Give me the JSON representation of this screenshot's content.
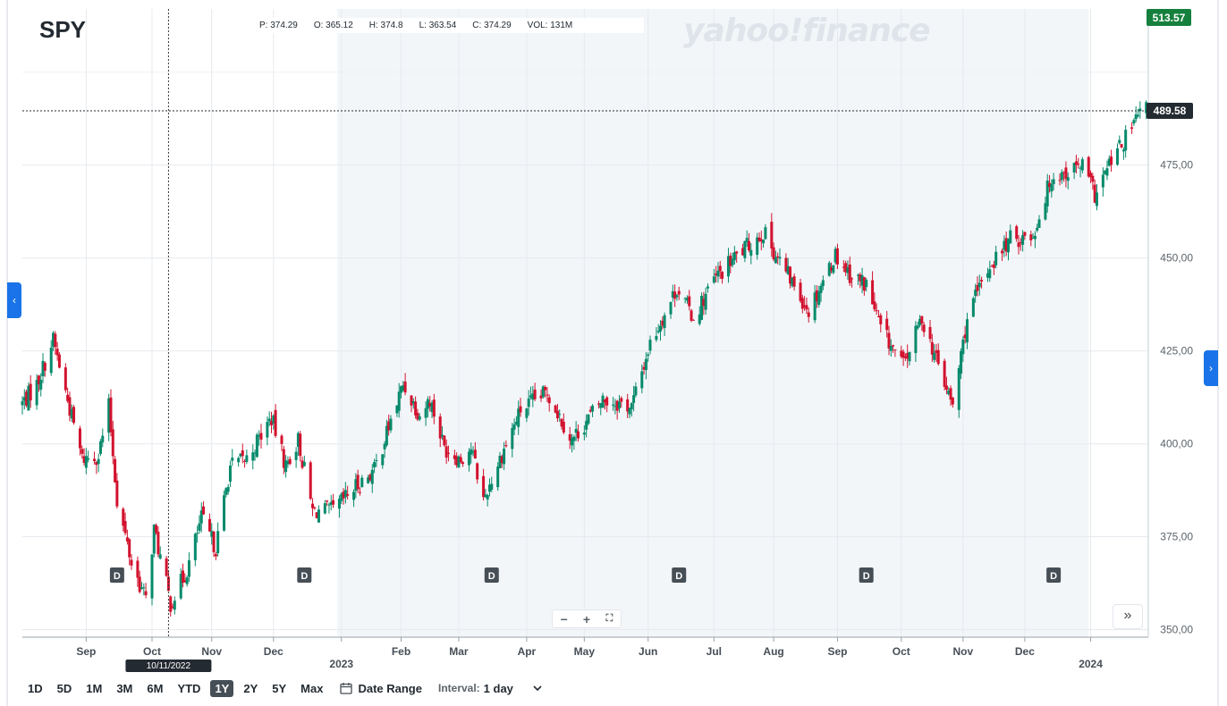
{
  "ticker": "SPY",
  "ohlc": {
    "p_label": "P:",
    "p": "374.29",
    "o_label": "O:",
    "o": "365.12",
    "h_label": "H:",
    "h": "374.8",
    "l_label": "L:",
    "l": "363.54",
    "c_label": "C:",
    "c": "374.29",
    "vol_label": "VOL:",
    "vol": "131M"
  },
  "watermark": "yahoo!finance",
  "colors": {
    "up": "#068a6b",
    "down": "#d2122e",
    "axis_text": "#5b636a",
    "shade": "#f3f6f9",
    "badge": "#464e56",
    "current_badge": "#232a31",
    "top_badge": "#15803d"
  },
  "chart_data": {
    "type": "candlestick",
    "ylim": [
      348,
      517
    ],
    "y_ticks": [
      350,
      375,
      400,
      425,
      450,
      475
    ],
    "y_tick_labels": [
      "350,00",
      "375,00",
      "400,00",
      "425,00",
      "450,00",
      "475,00"
    ],
    "x_ticks": [
      {
        "date": "2022-09-01",
        "label": "Sep"
      },
      {
        "date": "2022-10-03",
        "label": "Oct"
      },
      {
        "date": "2022-11-01",
        "label": "Nov"
      },
      {
        "date": "2022-12-01",
        "label": "Dec"
      },
      {
        "date": "2023-01-03",
        "label": "2023",
        "year": true
      },
      {
        "date": "2023-02-01",
        "label": "Feb"
      },
      {
        "date": "2023-03-01",
        "label": "Mar"
      },
      {
        "date": "2023-04-03",
        "label": "Apr"
      },
      {
        "date": "2023-05-01",
        "label": "May"
      },
      {
        "date": "2023-06-01",
        "label": "Jun"
      },
      {
        "date": "2023-07-03",
        "label": "Jul"
      },
      {
        "date": "2023-08-01",
        "label": "Aug"
      },
      {
        "date": "2023-09-01",
        "label": "Sep"
      },
      {
        "date": "2023-10-02",
        "label": "Oct"
      },
      {
        "date": "2023-11-01",
        "label": "Nov"
      },
      {
        "date": "2023-12-01",
        "label": "Dec"
      },
      {
        "date": "2024-01-02",
        "label": "2024",
        "year": true
      }
    ],
    "x_range": [
      "2022-08-01",
      "2024-01-30"
    ],
    "shaded_from": "2023-01-01",
    "shaded_to": "2024-01-01",
    "current_price": 489.58,
    "current_label": "489.58",
    "top_label": "513.57",
    "crosshair": {
      "date": "2022-10-11",
      "label": "10/11/2022"
    },
    "dividends": [
      {
        "date": "2022-09-16",
        "label": "D"
      },
      {
        "date": "2022-12-16",
        "label": "D"
      },
      {
        "date": "2023-03-17",
        "label": "D"
      },
      {
        "date": "2023-06-16",
        "label": "D"
      },
      {
        "date": "2023-09-15",
        "label": "D"
      },
      {
        "date": "2023-12-15",
        "label": "D"
      }
    ],
    "keypoints": [
      [
        "2022-08-01",
        411
      ],
      [
        "2022-08-08",
        416
      ],
      [
        "2022-08-16",
        428
      ],
      [
        "2022-08-22",
        414
      ],
      [
        "2022-08-30",
        396
      ],
      [
        "2022-09-07",
        397
      ],
      [
        "2022-09-12",
        410
      ],
      [
        "2022-09-16",
        385
      ],
      [
        "2022-09-23",
        368
      ],
      [
        "2022-09-30",
        358
      ],
      [
        "2022-10-04",
        377
      ],
      [
        "2022-10-12",
        357
      ],
      [
        "2022-10-20",
        366
      ],
      [
        "2022-10-27",
        380
      ],
      [
        "2022-11-03",
        372
      ],
      [
        "2022-11-10",
        394
      ],
      [
        "2022-11-18",
        396
      ],
      [
        "2022-11-30",
        407
      ],
      [
        "2022-12-07",
        394
      ],
      [
        "2022-12-13",
        401
      ],
      [
        "2022-12-20",
        382
      ],
      [
        "2022-12-30",
        382
      ],
      [
        "2023-01-09",
        388
      ],
      [
        "2023-01-19",
        393
      ],
      [
        "2023-02-02",
        416
      ],
      [
        "2023-02-10",
        408
      ],
      [
        "2023-02-15",
        412
      ],
      [
        "2023-02-22",
        399
      ],
      [
        "2023-03-02",
        396
      ],
      [
        "2023-03-07",
        399
      ],
      [
        "2023-03-13",
        385
      ],
      [
        "2023-03-21",
        396
      ],
      [
        "2023-03-31",
        409
      ],
      [
        "2023-04-13",
        414
      ],
      [
        "2023-04-25",
        401
      ],
      [
        "2023-05-10",
        412
      ],
      [
        "2023-05-24",
        410
      ],
      [
        "2023-06-02",
        427
      ],
      [
        "2023-06-15",
        442
      ],
      [
        "2023-06-23",
        434
      ],
      [
        "2023-07-03",
        444
      ],
      [
        "2023-07-13",
        450
      ],
      [
        "2023-07-27",
        457
      ],
      [
        "2023-08-03",
        450
      ],
      [
        "2023-08-18",
        436
      ],
      [
        "2023-08-31",
        451
      ],
      [
        "2023-09-08",
        445
      ],
      [
        "2023-09-15",
        443
      ],
      [
        "2023-09-22",
        431
      ],
      [
        "2023-10-03",
        421
      ],
      [
        "2023-10-12",
        434
      ],
      [
        "2023-10-20",
        421
      ],
      [
        "2023-10-27",
        410
      ],
      [
        "2023-11-03",
        434
      ],
      [
        "2023-11-14",
        448
      ],
      [
        "2023-11-24",
        455
      ],
      [
        "2023-12-05",
        456
      ],
      [
        "2023-12-14",
        472
      ],
      [
        "2023-12-21",
        473
      ],
      [
        "2023-12-29",
        475
      ],
      [
        "2024-01-04",
        467
      ],
      [
        "2024-01-12",
        476
      ],
      [
        "2024-01-19",
        482
      ],
      [
        "2024-01-25",
        488
      ],
      [
        "2024-01-29",
        490
      ]
    ]
  },
  "controls": {
    "zoom_out": "−",
    "zoom_in": "+",
    "fullscreen": "⛶",
    "fast_forward": "»",
    "left_arrow": "‹",
    "right_arrow": "›",
    "ranges": [
      {
        "label": "1D",
        "active": false
      },
      {
        "label": "5D",
        "active": false
      },
      {
        "label": "1M",
        "active": false
      },
      {
        "label": "3M",
        "active": false
      },
      {
        "label": "6M",
        "active": false
      },
      {
        "label": "YTD",
        "active": false
      },
      {
        "label": "1Y",
        "active": true
      },
      {
        "label": "2Y",
        "active": false
      },
      {
        "label": "5Y",
        "active": false
      },
      {
        "label": "Max",
        "active": false
      }
    ],
    "date_range": "Date Range",
    "interval_label": "Interval:",
    "interval_value": "1 day"
  }
}
